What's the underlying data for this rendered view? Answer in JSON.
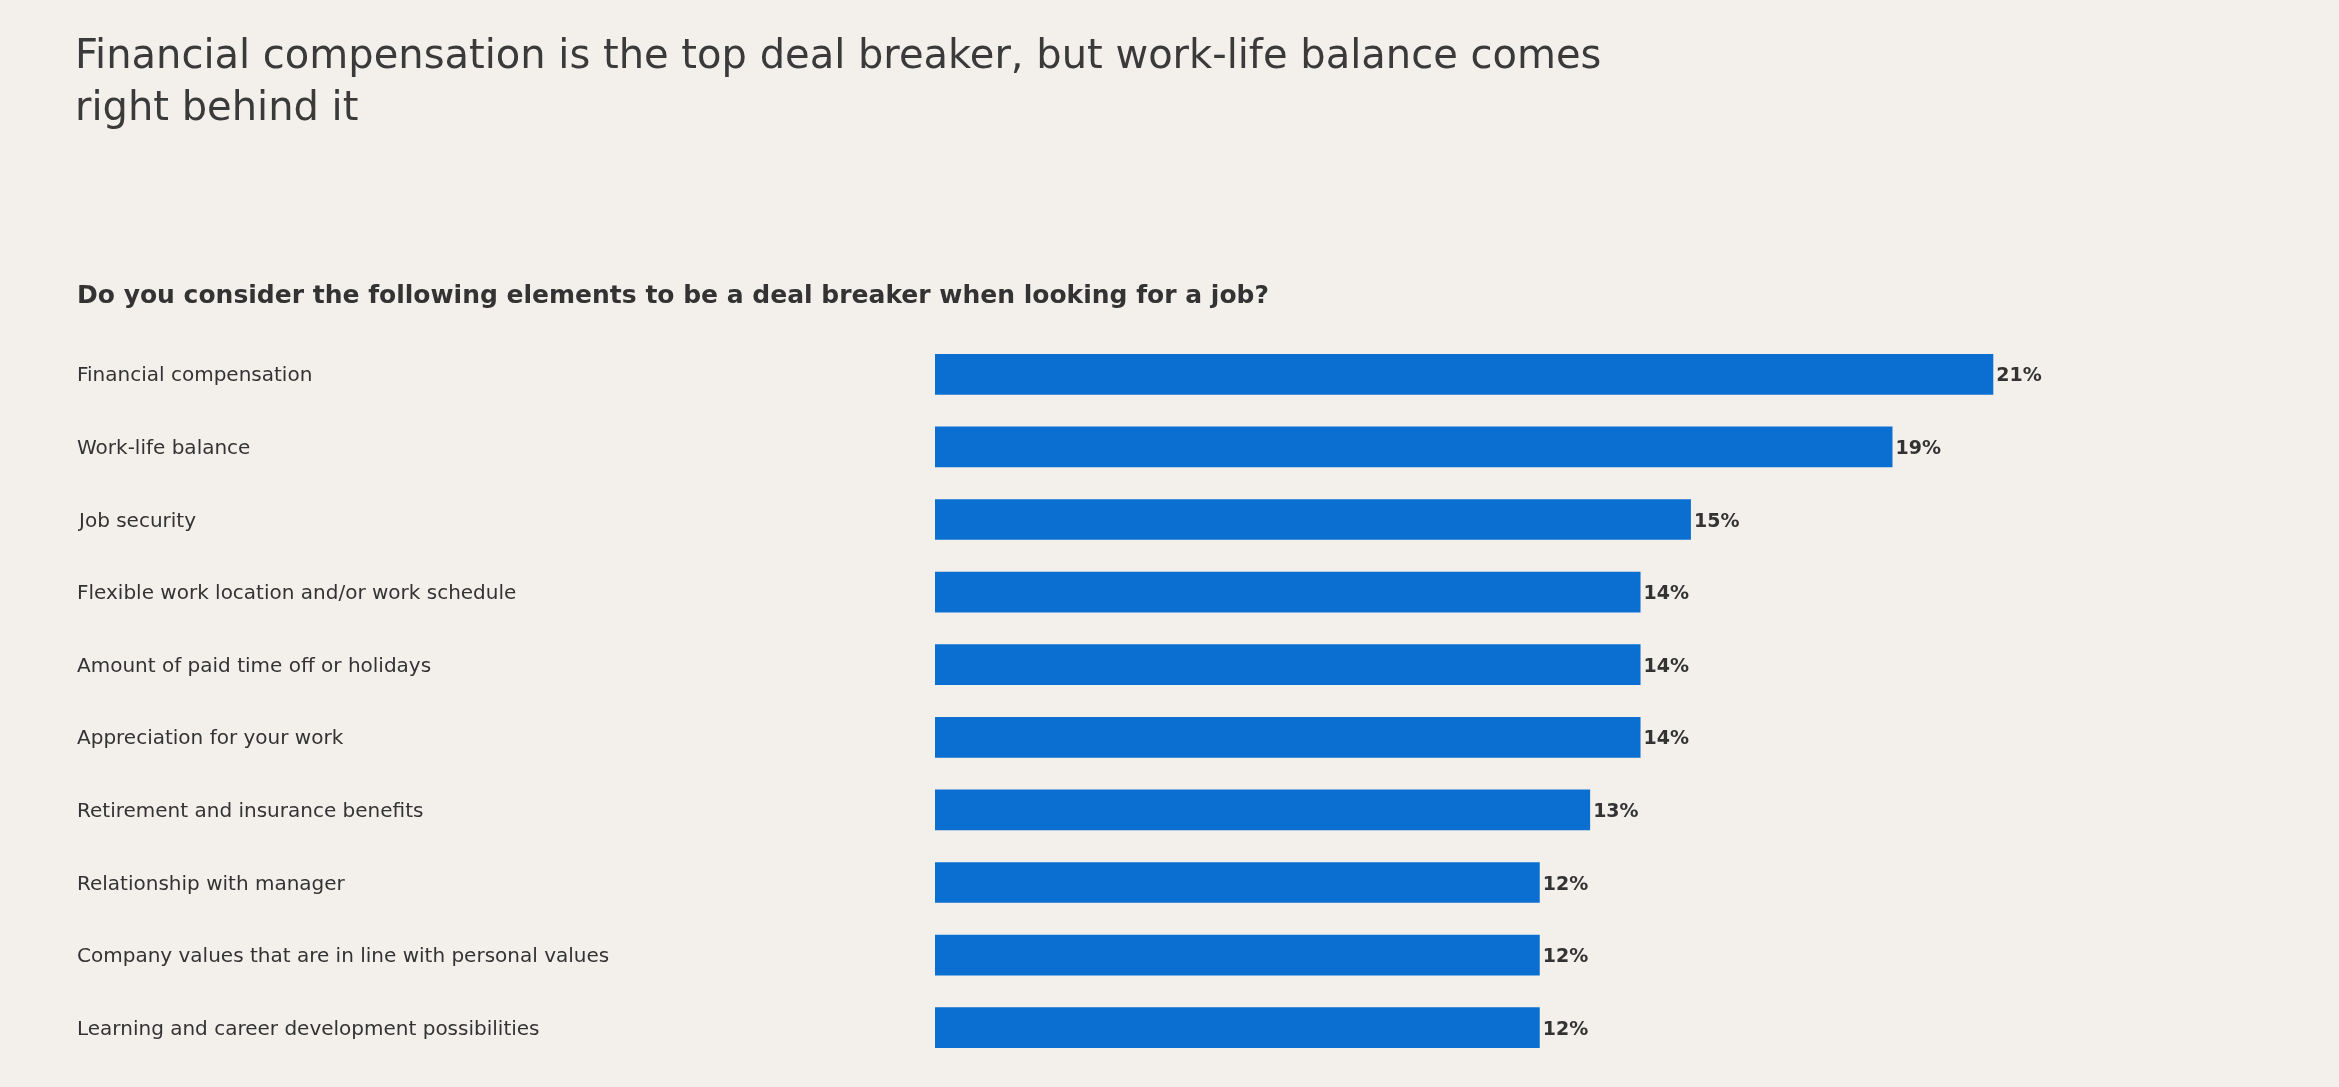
{
  "chart_data": {
    "type": "bar",
    "orientation": "horizontal",
    "title": "Financial compensation is the top deal breaker, but work-life balance comes right behind it",
    "subtitle": "Do you consider the following elements to be a deal breaker when looking for a job?",
    "categories": [
      "Financial compensation",
      "Work-life balance",
      "Job security",
      "Flexible work location and/or work schedule",
      "Amount of paid time off or holidays",
      "Appreciation for your work",
      "Retirement and insurance benefits",
      "Relationship with manager",
      "Company values that are in line with personal values",
      "Learning and career development possibilities"
    ],
    "values": [
      21,
      19,
      15,
      14,
      14,
      14,
      13,
      12,
      12,
      12
    ],
    "value_labels": [
      "21%",
      "19%",
      "15%",
      "14%",
      "14%",
      "14%",
      "13%",
      "12%",
      "12%",
      "12%"
    ],
    "color": "#0b6fd1",
    "tick_labels": "y",
    "grid": false
  }
}
